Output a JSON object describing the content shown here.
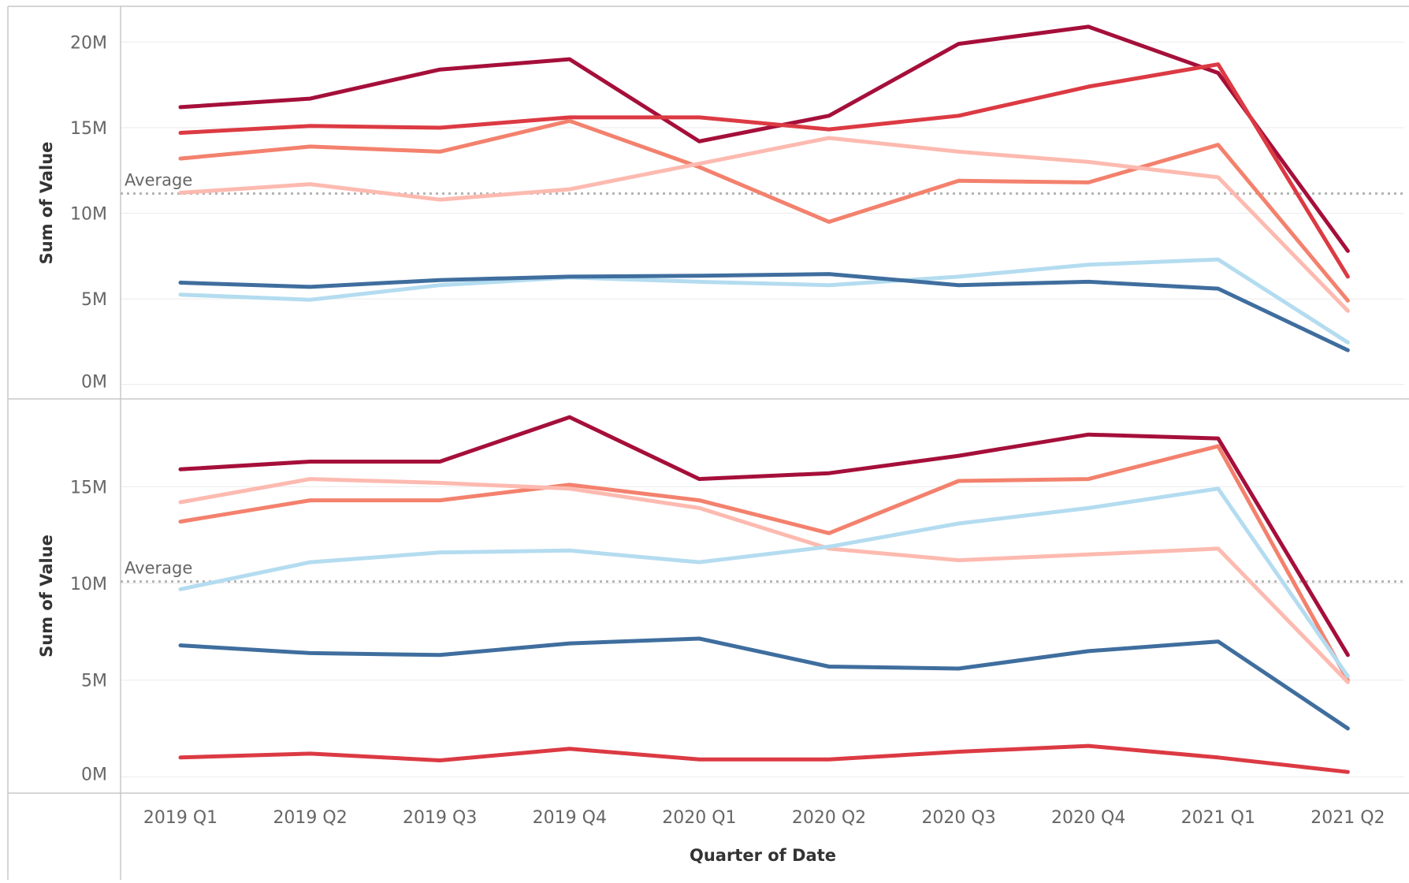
{
  "chart_data": {
    "type": "line",
    "xlabel": "Quarter of Date",
    "categories": [
      "2019 Q1",
      "2019 Q2",
      "2019 Q3",
      "2019 Q4",
      "2020 Q1",
      "2020 Q2",
      "2020 Q3",
      "2020 Q4",
      "2021 Q1",
      "2021 Q2"
    ],
    "panels": [
      {
        "ylabel": "Sum of Value",
        "y_ticks": [
          {
            "value": 0,
            "label": "0M"
          },
          {
            "value": 5000000,
            "label": "5M"
          },
          {
            "value": 10000000,
            "label": "10M"
          },
          {
            "value": 15000000,
            "label": "15M"
          },
          {
            "value": 20000000,
            "label": "20M"
          }
        ],
        "ylim": [
          -800000,
          22000000
        ],
        "reference_line": {
          "label": "Average",
          "value": 11150000
        },
        "series": [
          {
            "color": "#a50f3a",
            "values": [
              16200000,
              16700000,
              18400000,
              19000000,
              14200000,
              15700000,
              19900000,
              20900000,
              18200000,
              7800000
            ]
          },
          {
            "color": "#dc3a43",
            "values": [
              14700000,
              15100000,
              15000000,
              15600000,
              15600000,
              14900000,
              15700000,
              17400000,
              18700000,
              6300000
            ]
          },
          {
            "color": "#f3816d",
            "values": [
              13200000,
              13900000,
              13600000,
              15400000,
              12700000,
              9500000,
              11900000,
              11800000,
              14000000,
              4900000
            ]
          },
          {
            "color": "#fdbab0",
            "values": [
              11200000,
              11700000,
              10800000,
              11400000,
              12900000,
              14400000,
              13600000,
              13000000,
              12100000,
              4300000
            ]
          },
          {
            "color": "#b4dcf0",
            "values": [
              5250000,
              4950000,
              5800000,
              6250000,
              6000000,
              5800000,
              6300000,
              7000000,
              7300000,
              2450000
            ]
          },
          {
            "color": "#3f6e9e",
            "values": [
              5950000,
              5700000,
              6100000,
              6300000,
              6350000,
              6450000,
              5800000,
              6000000,
              5600000,
              2000000
            ]
          }
        ]
      },
      {
        "ylabel": "Sum of Value",
        "y_ticks": [
          {
            "value": 0,
            "label": "0M"
          },
          {
            "value": 5000000,
            "label": "5M"
          },
          {
            "value": 10000000,
            "label": "10M"
          },
          {
            "value": 15000000,
            "label": "15M"
          }
        ],
        "ylim": [
          -800000,
          19500000
        ],
        "reference_line": {
          "label": "Average",
          "value": 10100000
        },
        "series": [
          {
            "color": "#a50f3a",
            "values": [
              15900000,
              16300000,
              16300000,
              18600000,
              15400000,
              15700000,
              16600000,
              17700000,
              17500000,
              6300000
            ]
          },
          {
            "color": "#f3816d",
            "values": [
              13200000,
              14300000,
              14300000,
              15100000,
              14300000,
              12600000,
              15300000,
              15400000,
              17100000,
              5000000
            ]
          },
          {
            "color": "#fdbab0",
            "values": [
              14200000,
              15400000,
              15200000,
              14900000,
              13900000,
              11800000,
              11200000,
              11500000,
              11800000,
              4900000
            ]
          },
          {
            "color": "#b4dcf0",
            "values": [
              9700000,
              11100000,
              11600000,
              11700000,
              11100000,
              11900000,
              13100000,
              13900000,
              14900000,
              5200000
            ]
          },
          {
            "color": "#3f6e9e",
            "values": [
              6800000,
              6400000,
              6300000,
              6900000,
              7150000,
              5700000,
              5600000,
              6500000,
              7000000,
              2500000
            ]
          },
          {
            "color": "#dc3a43",
            "values": [
              1000000,
              1200000,
              850000,
              1450000,
              900000,
              900000,
              1300000,
              1600000,
              1000000,
              250000
            ]
          }
        ]
      }
    ]
  }
}
